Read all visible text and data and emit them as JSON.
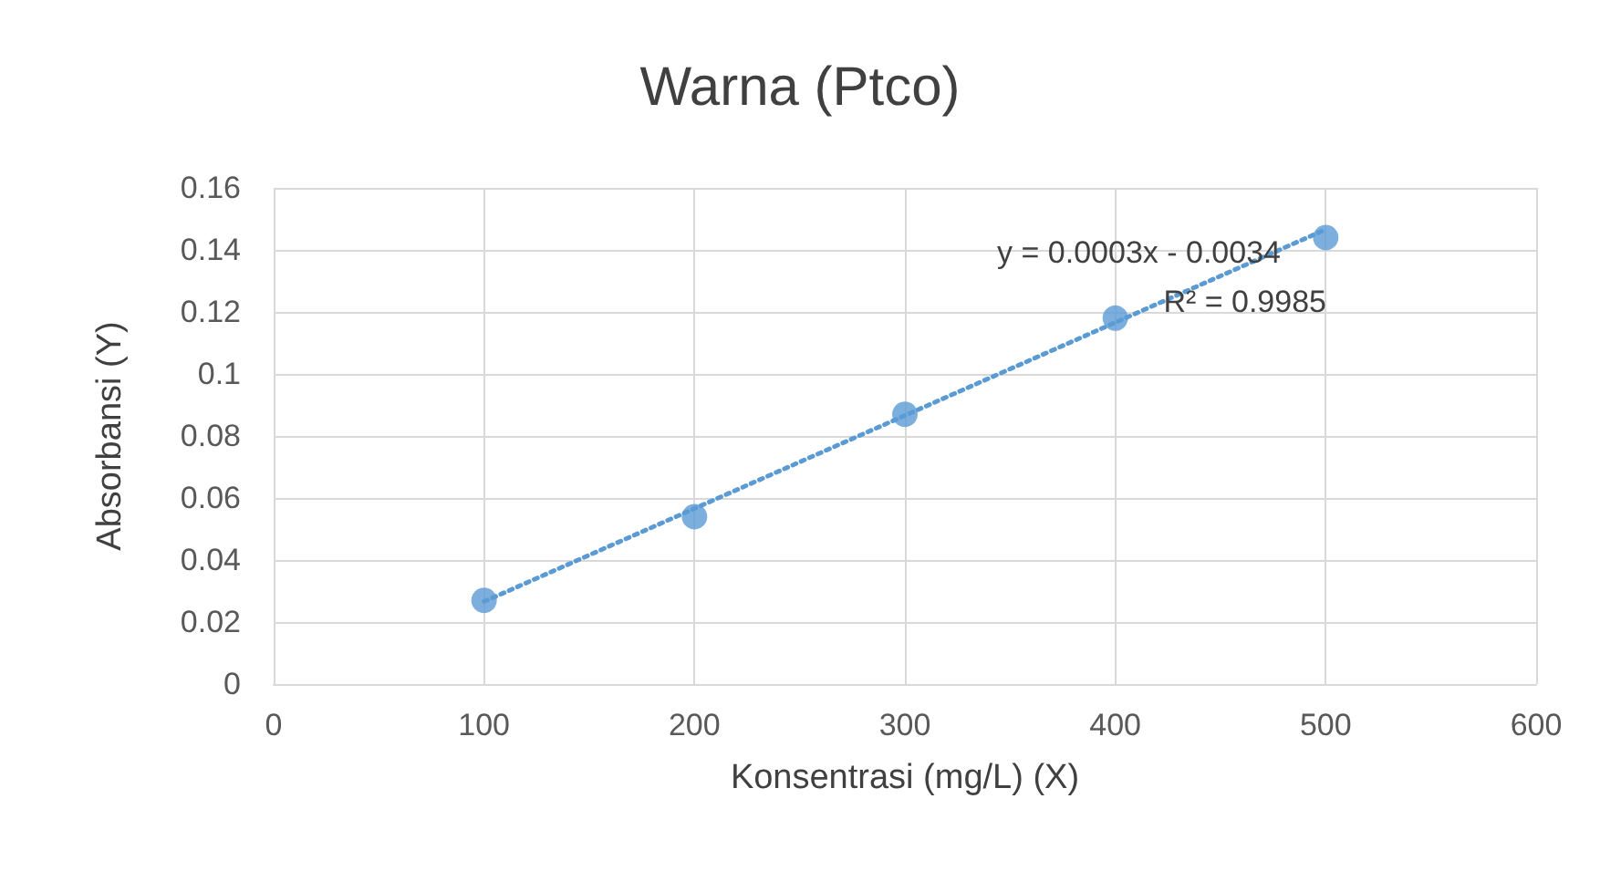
{
  "chart_data": {
    "type": "scatter",
    "title": "Warna (Ptco)",
    "xlabel": "Konsentrasi (mg/L) (X)",
    "ylabel": "Absorbansi (Y)",
    "annotations": [
      "y = 0.0003x - 0.0034",
      "R² = 0.9985"
    ],
    "xlim": [
      0,
      600
    ],
    "xticks": [
      0,
      100,
      200,
      300,
      400,
      500,
      600
    ],
    "ylim": [
      0,
      0.16
    ],
    "yticks": [
      0,
      0.02,
      0.04,
      0.06,
      0.08,
      0.1,
      0.12,
      0.14,
      0.16
    ],
    "grid": true,
    "marker": "circle",
    "series": [
      {
        "color": "#5b9bd5",
        "x": [
          100,
          200,
          300,
          400,
          500
        ],
        "values": [
          0.027,
          0.054,
          0.087,
          0.118,
          0.144
        ]
      },
      {
        "type": "line",
        "color": "#5b9bd5",
        "x": [
          100,
          500
        ],
        "values": [
          0.0266,
          0.1466
        ],
        "line_style": "dotted",
        "marker": "none"
      }
    ]
  }
}
